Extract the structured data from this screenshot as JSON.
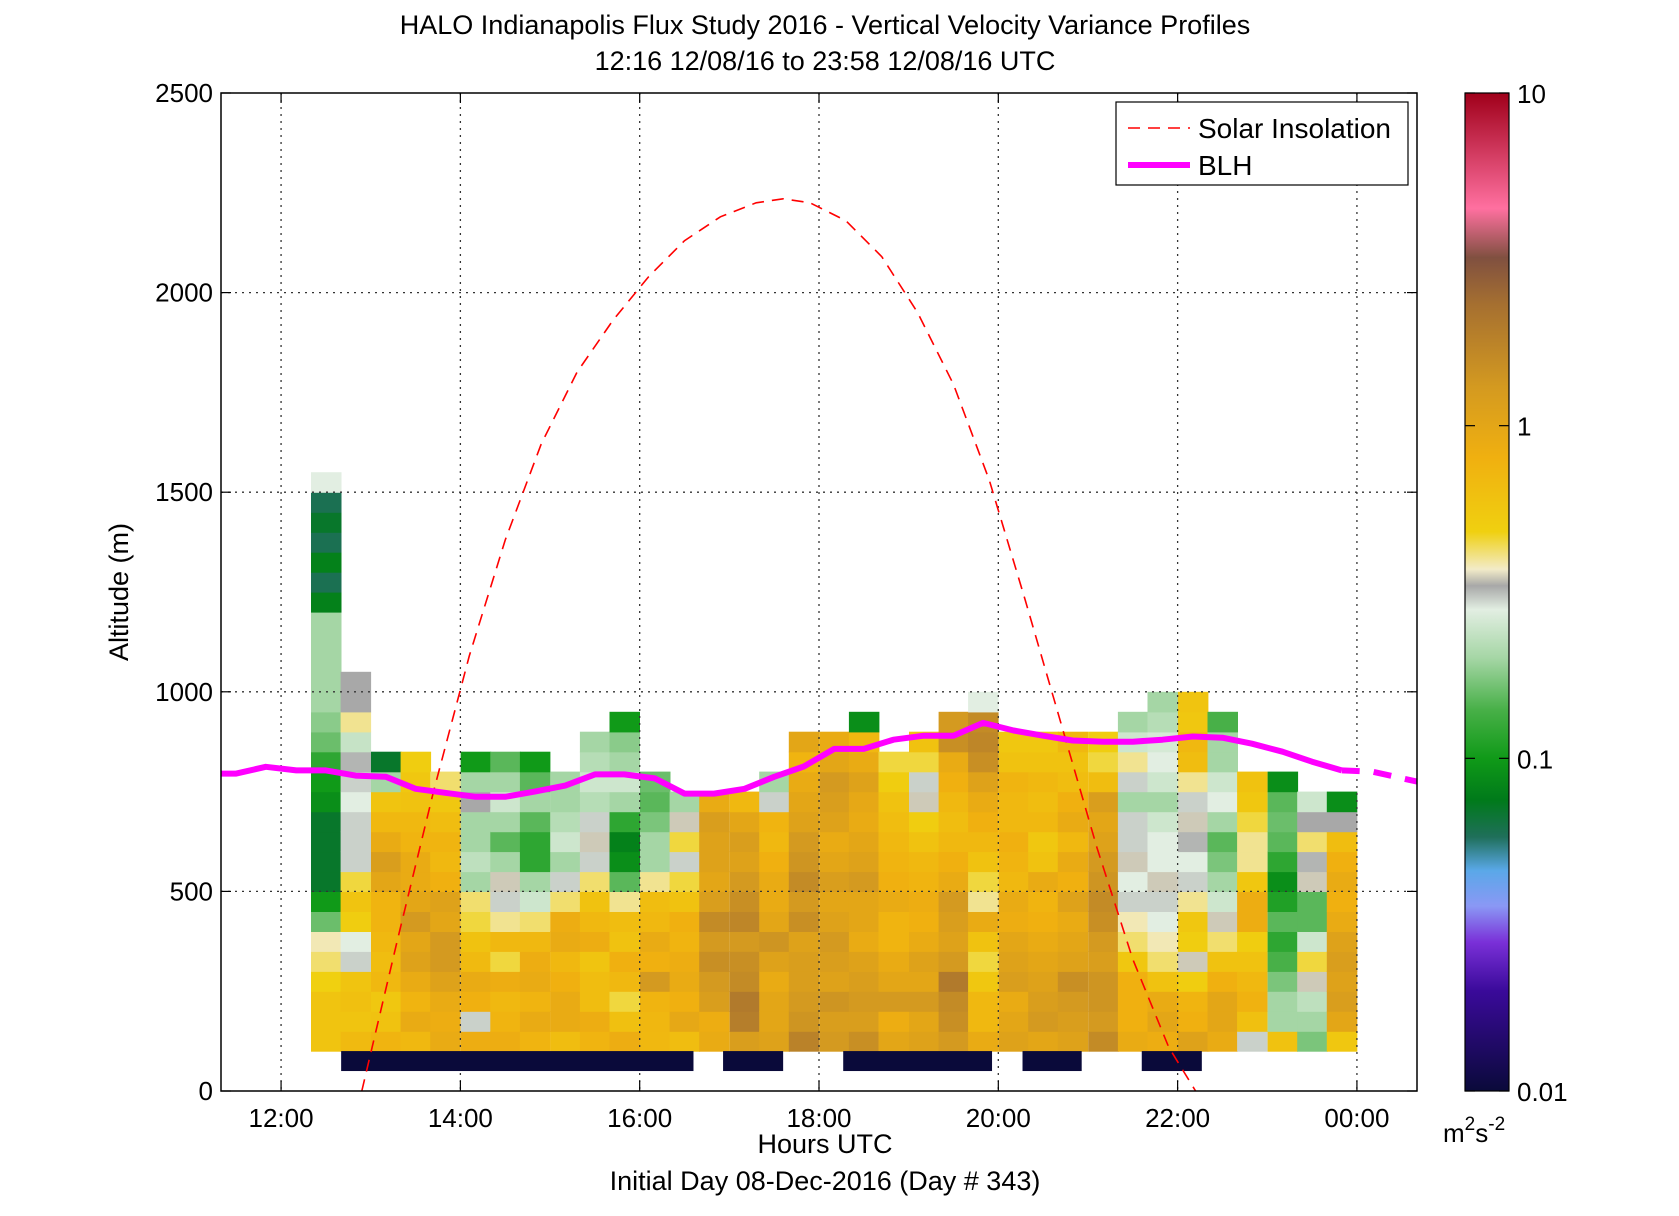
{
  "chart_data": {
    "type": "heatmap",
    "title_line1": "HALO Indianapolis Flux Study 2016 - Vertical Velocity Variance Profiles",
    "title_line2": "12:16 12/08/16 to 23:58 12/08/16  UTC",
    "xlabel": "Hours UTC",
    "xlabel2": "Initial Day 08-Dec-2016 (Day # 343)",
    "ylabel": "Altitude (m)",
    "xlim": [
      11.33,
      24.67
    ],
    "ylim": [
      0,
      2500
    ],
    "x_ticks": [
      12,
      14,
      16,
      18,
      20,
      22,
      24
    ],
    "x_tick_labels": [
      "12:00",
      "14:00",
      "16:00",
      "18:00",
      "20:00",
      "22:00",
      "00:00"
    ],
    "y_ticks": [
      0,
      500,
      1000,
      1500,
      2000,
      2500
    ],
    "y_tick_labels": [
      "0",
      "500",
      "1000",
      "1500",
      "2000",
      "2500"
    ],
    "grid": true,
    "legend": {
      "position": "top-right",
      "items": [
        {
          "label": "Solar Insolation",
          "style": "dashed",
          "color": "#ff0000"
        },
        {
          "label": "BLH",
          "style": "solid-thick",
          "color": "#ff00ff"
        }
      ]
    },
    "colorbar": {
      "scale": "log",
      "min": 0.01,
      "max": 10,
      "tick_values": [
        0.01,
        0.1,
        1,
        10
      ],
      "tick_labels": [
        "0.01",
        "0.1",
        "1",
        "10"
      ],
      "unit_base": "m",
      "unit_exp1": "2",
      "unit_mid": "s",
      "unit_exp2": "-2",
      "colors": [
        {
          "v": 0.01,
          "c": "#0a0a3a"
        },
        {
          "v": 0.02,
          "c": "#3a0a9a"
        },
        {
          "v": 0.028,
          "c": "#7a30d8"
        },
        {
          "v": 0.036,
          "c": "#8a98f5"
        },
        {
          "v": 0.046,
          "c": "#5aa8e8"
        },
        {
          "v": 0.058,
          "c": "#1f6f5a"
        },
        {
          "v": 0.075,
          "c": "#007a1a"
        },
        {
          "v": 0.1,
          "c": "#109a18"
        },
        {
          "v": 0.14,
          "c": "#48b048"
        },
        {
          "v": 0.2,
          "c": "#a5d6a5"
        },
        {
          "v": 0.28,
          "c": "#e2eee2"
        },
        {
          "v": 0.33,
          "c": "#a8a8a8"
        },
        {
          "v": 0.37,
          "c": "#f2ebc8"
        },
        {
          "v": 0.48,
          "c": "#f0d010"
        },
        {
          "v": 0.8,
          "c": "#f0b010"
        },
        {
          "v": 1.3,
          "c": "#d49a20"
        },
        {
          "v": 2.3,
          "c": "#a67030"
        },
        {
          "v": 3.2,
          "c": "#805040"
        },
        {
          "v": 4.5,
          "c": "#ff70a0"
        },
        {
          "v": 10,
          "c": "#a0001a"
        }
      ]
    },
    "heatmap": {
      "bin_width_hours": 0.333,
      "bin_height_m": 50,
      "column_centers_hours": [
        12.5,
        12.83,
        13.17,
        13.5,
        13.83,
        14.17,
        14.5,
        14.83,
        15.17,
        15.5,
        15.83,
        16.17,
        16.5,
        16.83,
        17.17,
        17.5,
        17.83,
        18.17,
        18.5,
        18.83,
        19.17,
        19.5,
        19.83,
        20.17,
        20.5,
        20.83,
        21.17,
        21.5,
        21.83,
        22.17,
        22.5,
        22.83,
        23.17,
        23.5,
        23.83
      ],
      "column_bottoms_m": [
        100,
        100,
        100,
        100,
        100,
        100,
        100,
        100,
        100,
        100,
        100,
        100,
        100,
        100,
        100,
        100,
        100,
        100,
        100,
        100,
        100,
        100,
        100,
        100,
        100,
        100,
        100,
        100,
        100,
        100,
        100,
        100,
        100,
        100,
        100
      ],
      "values": [
        [
          0.58,
          0.58,
          0.58,
          0.48,
          0.42,
          0.38,
          0.16,
          0.1,
          0.07,
          0.07,
          0.07,
          0.07,
          0.09,
          0.1,
          0.12,
          0.16,
          0.18,
          0.2,
          0.2,
          0.2,
          0.2,
          0.2,
          0.08,
          0.06,
          0.08,
          0.06,
          0.07,
          0.06,
          0.28
        ],
        [
          0.68,
          0.58,
          0.62,
          0.58,
          0.3,
          0.28,
          0.5,
          0.58,
          0.45,
          0.3,
          0.3,
          0.3,
          0.28,
          0.3,
          0.32,
          0.24,
          0.4,
          0.33,
          0.33
        ],
        [
          0.75,
          0.6,
          0.55,
          0.7,
          0.65,
          0.7,
          0.75,
          0.75,
          1.0,
          1.2,
          0.9,
          0.7,
          0.58,
          0.2,
          0.07
        ],
        [
          0.7,
          0.9,
          0.75,
          0.9,
          1.1,
          1.0,
          1.3,
          1.0,
          0.9,
          0.9,
          0.75,
          0.7,
          0.6,
          0.55,
          0.5
        ],
        [
          0.9,
          0.85,
          0.9,
          1.1,
          1.3,
          1.3,
          1.0,
          1.1,
          0.8,
          0.7,
          0.75,
          0.65,
          0.55,
          0.42
        ],
        [
          0.85,
          0.3,
          0.8,
          0.9,
          0.68,
          0.6,
          0.45,
          0.42,
          0.2,
          0.23,
          0.2,
          0.2,
          0.33,
          0.2,
          0.1
        ],
        [
          0.85,
          0.75,
          0.7,
          0.85,
          0.45,
          0.7,
          0.4,
          0.3,
          0.35,
          0.2,
          0.15,
          0.2,
          0.25,
          0.2,
          0.15
        ],
        [
          0.75,
          0.9,
          0.75,
          0.9,
          0.85,
          0.7,
          0.42,
          0.25,
          0.2,
          0.12,
          0.12,
          0.15,
          0.2,
          0.15,
          0.1
        ],
        [
          0.65,
          0.9,
          0.9,
          0.8,
          0.7,
          0.9,
          0.85,
          0.42,
          0.3,
          0.2,
          0.25,
          0.22,
          0.2,
          0.2
        ],
        [
          0.75,
          0.85,
          0.65,
          0.65,
          0.58,
          0.85,
          0.7,
          0.6,
          0.42,
          0.3,
          0.35,
          0.3,
          0.22,
          0.25,
          0.22,
          0.2
        ],
        [
          0.85,
          0.62,
          0.45,
          0.7,
          0.8,
          0.6,
          0.65,
          0.4,
          0.15,
          0.09,
          0.08,
          0.12,
          0.2,
          0.25,
          0.2,
          0.18,
          0.1
        ],
        [
          0.7,
          0.72,
          0.75,
          1.3,
          0.8,
          0.9,
          0.7,
          0.65,
          0.4,
          0.2,
          0.2,
          0.17,
          0.15,
          0.16
        ],
        [
          0.65,
          0.95,
          0.8,
          0.9,
          0.85,
          0.75,
          0.8,
          0.6,
          0.45,
          0.3,
          0.45,
          0.35,
          0.2
        ],
        [
          0.9,
          0.85,
          1.2,
          1.3,
          1.5,
          1.3,
          1.6,
          1.2,
          1.0,
          1.1,
          1.1,
          1.2,
          0.9
        ],
        [
          1.2,
          1.9,
          2.0,
          1.6,
          1.5,
          1.3,
          1.7,
          1.5,
          1.3,
          1.1,
          1.2,
          1.0,
          0.7
        ],
        [
          1.1,
          1.0,
          1.0,
          0.9,
          1.1,
          1.4,
          1.0,
          0.9,
          0.9,
          0.8,
          0.7,
          0.75,
          0.3,
          0.2
        ],
        [
          1.8,
          1.4,
          1.3,
          1.2,
          1.2,
          1.1,
          1.5,
          1.3,
          1.6,
          1.4,
          1.3,
          1.1,
          1.0,
          0.9,
          0.75,
          1.0
        ],
        [
          1.3,
          1.2,
          1.4,
          1.1,
          1.2,
          1.3,
          1.1,
          1.0,
          1.2,
          1.0,
          0.9,
          1.1,
          1.2,
          1.3,
          1.0,
          0.9
        ],
        [
          1.5,
          1.2,
          1.3,
          1.2,
          1.1,
          0.9,
          1.0,
          1.0,
          1.3,
          1.1,
          1.0,
          0.9,
          0.95,
          1.1,
          0.9,
          0.7,
          0.09
        ],
        [
          1.0,
          0.85,
          1.3,
          1.0,
          0.9,
          0.75,
          0.75,
          0.9,
          0.8,
          0.75,
          0.7,
          0.65,
          0.6,
          0.5,
          0.45
        ],
        [
          1.1,
          1.0,
          1.3,
          1.0,
          1.1,
          0.9,
          0.8,
          0.85,
          0.75,
          0.7,
          0.6,
          0.5,
          0.35,
          0.3,
          0.45,
          0.6
        ],
        [
          1.3,
          1.5,
          1.6,
          2.0,
          1.3,
          1.1,
          1.2,
          1.3,
          0.9,
          0.8,
          0.7,
          0.65,
          0.7,
          0.8,
          0.9,
          1.5,
          1.3
        ],
        [
          0.9,
          0.7,
          0.7,
          0.55,
          0.45,
          0.6,
          0.9,
          0.4,
          0.45,
          0.6,
          0.7,
          0.8,
          0.9,
          1.1,
          1.5,
          1.7,
          1.6,
          0.28
        ],
        [
          1.1,
          1.0,
          0.9,
          1.2,
          1.1,
          1.0,
          0.85,
          0.9,
          0.7,
          0.75,
          0.8,
          0.7,
          0.7,
          0.75,
          0.6,
          0.55
        ],
        [
          1.0,
          1.3,
          1.2,
          1.1,
          1.0,
          0.9,
          0.8,
          0.75,
          0.9,
          0.6,
          0.55,
          0.7,
          0.65,
          0.7,
          0.6,
          0.55
        ],
        [
          1.1,
          1.2,
          1.3,
          1.5,
          1.1,
          1.0,
          0.9,
          1.1,
          0.8,
          0.9,
          0.7,
          0.9,
          0.8,
          0.65,
          0.6,
          0.7
        ],
        [
          1.6,
          1.3,
          1.4,
          1.4,
          1.2,
          1.3,
          1.5,
          1.6,
          1.4,
          1.3,
          1.1,
          1.0,
          1.2,
          0.65,
          0.45,
          0.5
        ],
        [
          0.9,
          0.8,
          0.8,
          0.8,
          0.55,
          0.42,
          0.38,
          0.3,
          0.28,
          0.35,
          0.3,
          0.3,
          0.2,
          0.3,
          0.4,
          0.25,
          0.2
        ],
        [
          0.85,
          1.0,
          0.9,
          0.6,
          0.42,
          0.38,
          0.28,
          0.3,
          0.35,
          0.28,
          0.28,
          0.25,
          0.2,
          0.25,
          0.28,
          0.26,
          0.22,
          0.2
        ],
        [
          1.1,
          0.8,
          0.75,
          0.5,
          0.35,
          0.5,
          0.55,
          0.4,
          0.3,
          0.28,
          0.32,
          0.35,
          0.3,
          0.4,
          0.65,
          0.7,
          0.55,
          0.58
        ],
        [
          0.9,
          1.0,
          1.0,
          0.8,
          0.6,
          0.42,
          0.35,
          0.25,
          0.2,
          0.17,
          0.15,
          0.2,
          0.28,
          0.25,
          0.2,
          0.2,
          0.14
        ],
        [
          0.3,
          0.62,
          0.78,
          0.7,
          0.6,
          0.5,
          0.85,
          0.85,
          0.55,
          0.4,
          0.4,
          0.45,
          0.55,
          0.6
        ],
        [
          0.6,
          0.2,
          0.2,
          0.17,
          0.14,
          0.12,
          0.15,
          0.11,
          0.09,
          0.12,
          0.15,
          0.16,
          0.15,
          0.09
        ],
        [
          0.17,
          0.2,
          0.23,
          0.35,
          0.45,
          0.25,
          0.15,
          0.15,
          0.35,
          0.32,
          0.42,
          0.33,
          0.25
        ],
        [
          0.55,
          1.0,
          1.2,
          1.1,
          1.2,
          1.1,
          0.9,
          0.8,
          0.9,
          0.8,
          0.65,
          0.33,
          0.09
        ]
      ]
    },
    "blh_series": {
      "name": "BLH",
      "x": [
        11.33,
        11.5,
        11.83,
        12.17,
        12.5,
        12.83,
        13.17,
        13.5,
        13.83,
        14.17,
        14.5,
        14.83,
        15.17,
        15.5,
        15.83,
        16.17,
        16.5,
        16.83,
        17.17,
        17.5,
        17.83,
        18.17,
        18.5,
        18.83,
        19.17,
        19.5,
        19.83,
        20.17,
        20.5,
        20.83,
        21.17,
        21.5,
        21.83,
        22.17,
        22.5,
        22.83,
        23.17,
        23.5,
        23.83,
        24.17,
        24.67
      ],
      "y": [
        795,
        795,
        812,
        803,
        803,
        790,
        787,
        757,
        747,
        737,
        737,
        750,
        765,
        793,
        793,
        783,
        745,
        745,
        757,
        787,
        813,
        857,
        857,
        880,
        890,
        890,
        922,
        903,
        890,
        878,
        875,
        875,
        880,
        888,
        885,
        870,
        850,
        825,
        803,
        800,
        775
      ],
      "dashed_after_x": 24.1
    },
    "solar_series": {
      "name": "Solar Insolation",
      "x": [
        12.9,
        13.3,
        13.7,
        14.1,
        14.5,
        14.9,
        15.3,
        15.7,
        16.1,
        16.5,
        16.9,
        17.3,
        17.6,
        17.9,
        18.3,
        18.7,
        19.1,
        19.5,
        19.9,
        20.3,
        20.7,
        21.1,
        21.5,
        21.9,
        22.2
      ],
      "y": [
        0,
        380,
        750,
        1090,
        1380,
        1620,
        1800,
        1930,
        2040,
        2130,
        2190,
        2225,
        2235,
        2225,
        2180,
        2090,
        1950,
        1770,
        1530,
        1230,
        920,
        610,
        330,
        110,
        0
      ]
    },
    "flag_bars": {
      "y_range": [
        50,
        100
      ],
      "color": "#0a0a3a",
      "intervals": [
        [
          12.67,
          16.6
        ],
        [
          16.93,
          17.6
        ],
        [
          18.27,
          19.93
        ],
        [
          20.27,
          20.93
        ],
        [
          21.6,
          22.27
        ]
      ]
    }
  }
}
